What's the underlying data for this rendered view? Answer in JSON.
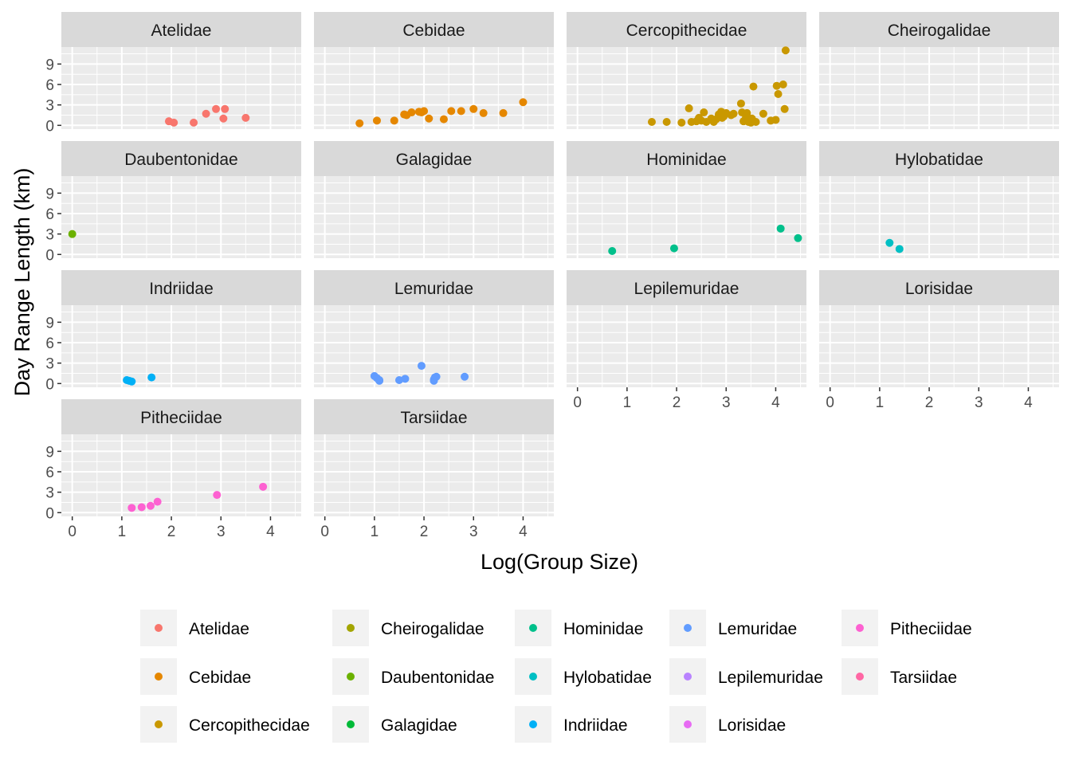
{
  "chart_data": {
    "type": "scatter",
    "facet_layout": "wrap-4-columns",
    "xlabel": "Log(Group Size)",
    "ylabel": "Day Range Length (km)",
    "x_ticks": [
      0,
      1,
      2,
      3,
      4
    ],
    "y_ticks": [
      0,
      3,
      6,
      9
    ],
    "xlim": [
      -0.22,
      4.62
    ],
    "ylim": [
      -0.55,
      11.5
    ],
    "grid": true,
    "legend_position": "bottom",
    "colors": {
      "Atelidae": "#F8766D",
      "Cebidae": "#E58700",
      "Cercopithecidae": "#C99800",
      "Cheirogalidae": "#A3A500",
      "Daubentonidae": "#6BB100",
      "Galagidae": "#00BA38",
      "Hominidae": "#00C08B",
      "Hylobatidae": "#00BFC4",
      "Indriidae": "#00B0F6",
      "Lemuridae": "#619CFF",
      "Lepilemuridae": "#B983FF",
      "Lorisidae": "#E76BF3",
      "Pitheciidae": "#FD61D1",
      "Tarsiidae": "#FF67A4"
    },
    "legend": [
      [
        "Atelidae",
        "Cebidae",
        "Cercopithecidae"
      ],
      [
        "Cheirogalidae",
        "Daubentonidae",
        "Galagidae"
      ],
      [
        "Hominidae",
        "Hylobatidae",
        "Indriidae"
      ],
      [
        "Lemuridae",
        "Lepilemuridae",
        "Lorisidae"
      ],
      [
        "Pitheciidae",
        "Tarsiidae"
      ]
    ],
    "facets": [
      {
        "name": "Atelidae",
        "points": [
          [
            1.95,
            0.6
          ],
          [
            2.05,
            0.4
          ],
          [
            2.45,
            0.4
          ],
          [
            2.7,
            1.7
          ],
          [
            2.9,
            2.4
          ],
          [
            3.05,
            1.0
          ],
          [
            3.08,
            2.4
          ],
          [
            3.5,
            1.1
          ]
        ]
      },
      {
        "name": "Cebidae",
        "points": [
          [
            0.7,
            0.3
          ],
          [
            1.05,
            0.7
          ],
          [
            1.4,
            0.7
          ],
          [
            1.6,
            1.6
          ],
          [
            1.65,
            1.5
          ],
          [
            1.75,
            1.9
          ],
          [
            1.9,
            2.0
          ],
          [
            1.95,
            1.9
          ],
          [
            2.0,
            2.1
          ],
          [
            2.1,
            1.0
          ],
          [
            2.4,
            0.9
          ],
          [
            2.55,
            2.1
          ],
          [
            2.75,
            2.1
          ],
          [
            3.0,
            2.4
          ],
          [
            3.2,
            1.8
          ],
          [
            3.6,
            1.8
          ],
          [
            4.0,
            3.4
          ]
        ]
      },
      {
        "name": "Cercopithecidae",
        "points": [
          [
            1.5,
            0.5
          ],
          [
            1.8,
            0.5
          ],
          [
            2.1,
            0.4
          ],
          [
            2.25,
            2.5
          ],
          [
            2.3,
            0.5
          ],
          [
            2.4,
            0.6
          ],
          [
            2.45,
            1.1
          ],
          [
            2.5,
            0.7
          ],
          [
            2.55,
            1.9
          ],
          [
            2.6,
            0.5
          ],
          [
            2.7,
            1.0
          ],
          [
            2.75,
            0.5
          ],
          [
            2.8,
            0.9
          ],
          [
            2.85,
            1.6
          ],
          [
            2.88,
            1.4
          ],
          [
            2.9,
            2.0
          ],
          [
            2.92,
            1.1
          ],
          [
            2.95,
            1.3
          ],
          [
            3.0,
            1.8
          ],
          [
            3.1,
            1.5
          ],
          [
            3.15,
            1.7
          ],
          [
            3.3,
            3.2
          ],
          [
            3.32,
            1.9
          ],
          [
            3.35,
            0.6
          ],
          [
            3.4,
            1.2
          ],
          [
            3.42,
            1.8
          ],
          [
            3.45,
            0.5
          ],
          [
            3.5,
            0.4
          ],
          [
            3.52,
            1.0
          ],
          [
            3.55,
            5.7
          ],
          [
            3.6,
            0.5
          ],
          [
            3.75,
            1.7
          ],
          [
            3.9,
            0.7
          ],
          [
            4.0,
            0.8
          ],
          [
            4.02,
            5.8
          ],
          [
            4.05,
            4.6
          ],
          [
            4.15,
            6.0
          ],
          [
            4.18,
            2.4
          ],
          [
            4.2,
            11.0
          ]
        ]
      },
      {
        "name": "Cheirogalidae",
        "points": []
      },
      {
        "name": "Daubentonidae",
        "points": [
          [
            0.0,
            3.0
          ]
        ]
      },
      {
        "name": "Galagidae",
        "points": []
      },
      {
        "name": "Hominidae",
        "points": [
          [
            0.7,
            0.5
          ],
          [
            1.95,
            0.9
          ],
          [
            4.1,
            3.8
          ],
          [
            4.45,
            2.4
          ]
        ]
      },
      {
        "name": "Hylobatidae",
        "points": [
          [
            1.2,
            1.7
          ],
          [
            1.4,
            0.8
          ]
        ]
      },
      {
        "name": "Indriidae",
        "points": [
          [
            1.1,
            0.5
          ],
          [
            1.15,
            0.4
          ],
          [
            1.2,
            0.3
          ],
          [
            1.6,
            0.9
          ]
        ]
      },
      {
        "name": "Lemuridae",
        "points": [
          [
            1.0,
            1.1
          ],
          [
            1.05,
            0.8
          ],
          [
            1.1,
            0.5
          ],
          [
            1.1,
            0.4
          ],
          [
            1.5,
            0.5
          ],
          [
            1.62,
            0.7
          ],
          [
            1.95,
            2.6
          ],
          [
            2.2,
            0.6
          ],
          [
            2.2,
            0.4
          ],
          [
            2.22,
            0.9
          ],
          [
            2.25,
            1.0
          ],
          [
            2.82,
            1.0
          ]
        ]
      },
      {
        "name": "Lepilemuridae",
        "points": []
      },
      {
        "name": "Lorisidae",
        "points": []
      },
      {
        "name": "Pitheciidae",
        "points": [
          [
            1.2,
            0.7
          ],
          [
            1.4,
            0.8
          ],
          [
            1.58,
            1.0
          ],
          [
            1.72,
            1.6
          ],
          [
            2.92,
            2.6
          ],
          [
            3.85,
            3.8
          ]
        ]
      },
      {
        "name": "Tarsiidae",
        "points": []
      }
    ]
  }
}
